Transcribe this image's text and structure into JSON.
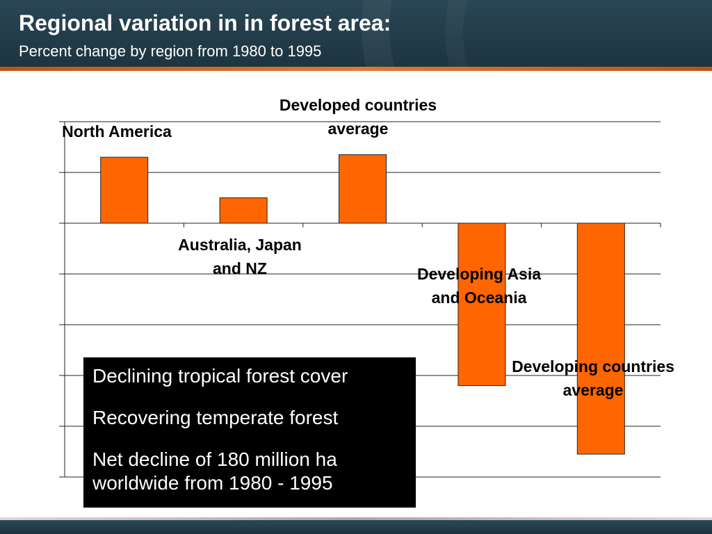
{
  "header": {
    "title": "Regional variation in in forest area:",
    "subtitle": "Percent change by region from 1980 to 1995"
  },
  "colors": {
    "bar": "#ff6600",
    "header_bg": "#1d3441",
    "accent_stripe": "#e07a30"
  },
  "chart_data": {
    "type": "bar",
    "title": "Regional variation in in forest area:",
    "subtitle": "Percent change by region from 1980 to 1995",
    "categories": [
      "North America",
      "Australia, Japan and NZ",
      "Developed countries average",
      "Developing Asia and Oceania",
      "Developing countries average"
    ],
    "category_label_lines": [
      [
        "North America"
      ],
      [
        "Australia, Japan",
        "and NZ"
      ],
      [
        "Developed countries",
        "average"
      ],
      [
        "Developing Asia",
        "and Oceania"
      ],
      [
        "Developing countries",
        "average"
      ]
    ],
    "values": [
      1.3,
      0.5,
      1.35,
      -3.2,
      -4.55
    ],
    "ylim": [
      -5,
      2
    ],
    "y_gridline_step": 1,
    "y_tick_labels_shown": false,
    "grid": true,
    "legend": "none",
    "xlabel": "",
    "ylabel": ""
  },
  "infobox": {
    "lines": [
      "Declining tropical forest cover",
      "Recovering temperate forest",
      "Net decline of 180 million ha worldwide from 1980 - 1995"
    ]
  }
}
